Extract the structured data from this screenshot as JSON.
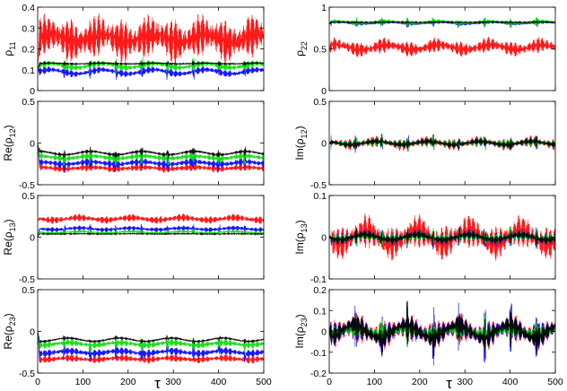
{
  "chart_data": {
    "type": "line",
    "x_tick_labels": [
      "0",
      "100",
      "200",
      "300",
      "400",
      "500"
    ],
    "xlim": [
      0,
      500
    ],
    "xlabel": "τ",
    "colors": {
      "series_red": "#ff0000",
      "series_green": "#00dd00",
      "series_blue": "#0000ff",
      "series_black": "#000000"
    },
    "panels": [
      {
        "id": "rho11",
        "label_main": "ρ",
        "label_sub": "11",
        "label_prefix": "",
        "label_suffix": "",
        "ylim": [
          0,
          0.4
        ],
        "y_ticks": [
          0,
          0.1,
          0.2,
          0.3,
          0.4
        ],
        "y_tick_labels": [
          "0",
          "0.1",
          "0.2",
          "0.3",
          "0.4"
        ],
        "series": [
          {
            "name": "red",
            "mean": 0.25,
            "amp": 0.09,
            "env": 0.02,
            "start": 0.1
          },
          {
            "name": "green",
            "mean": 0.12,
            "amp": 0.015,
            "env": 0.01,
            "start": 0.1
          },
          {
            "name": "blue",
            "mean": 0.09,
            "amp": 0.015,
            "env": 0.01,
            "start": 0.1
          },
          {
            "name": "black",
            "mean": 0.13,
            "amp": 0.005,
            "env": 0.002,
            "start": 0.1
          }
        ]
      },
      {
        "id": "rho22",
        "label_main": "ρ",
        "label_sub": "22",
        "label_prefix": "",
        "label_suffix": "",
        "ylim": [
          0,
          1
        ],
        "y_ticks": [
          0,
          0.5,
          1
        ],
        "y_tick_labels": [
          "0",
          "0.5",
          "1"
        ],
        "series": [
          {
            "name": "red",
            "mean": 0.52,
            "amp": 0.08,
            "env": 0.03,
            "start": 0.5
          },
          {
            "name": "green",
            "mean": 0.82,
            "amp": 0.025,
            "env": 0.01,
            "start": 0.8
          },
          {
            "name": "blue",
            "mean": 0.81,
            "amp": 0.02,
            "env": 0.01,
            "start": 0.8
          },
          {
            "name": "black",
            "mean": 0.82,
            "amp": 0.005,
            "env": 0.002,
            "start": 0.8
          }
        ]
      },
      {
        "id": "re_rho12",
        "label_main": "ρ",
        "label_sub": "12",
        "label_prefix": "Re(",
        "label_suffix": ")",
        "ylim": [
          -0.5,
          0.5
        ],
        "y_ticks": [
          -0.5,
          0,
          0.5
        ],
        "y_tick_labels": [
          "-0.5",
          "0",
          "0.5"
        ],
        "series": [
          {
            "name": "red",
            "mean": -0.3,
            "amp": 0.04,
            "env": 0.01,
            "start": 0
          },
          {
            "name": "green",
            "mean": -0.17,
            "amp": 0.035,
            "env": 0.015,
            "start": 0
          },
          {
            "name": "blue",
            "mean": -0.24,
            "amp": 0.04,
            "env": 0.015,
            "start": 0
          },
          {
            "name": "black",
            "mean": -0.12,
            "amp": 0.02,
            "env": 0.02,
            "start": 0
          }
        ]
      },
      {
        "id": "im_rho12",
        "label_main": "ρ",
        "label_sub": "12",
        "label_prefix": "Im(",
        "label_suffix": ")",
        "ylim": [
          -0.5,
          0.5
        ],
        "y_ticks": [
          -0.5,
          0,
          0.5
        ],
        "y_tick_labels": [
          "-0.5",
          "0",
          "0.5"
        ],
        "series": [
          {
            "name": "red",
            "mean": 0,
            "amp": 0.06,
            "env": 0.02,
            "start": 0
          },
          {
            "name": "green",
            "mean": 0,
            "amp": 0.04,
            "env": 0.015,
            "start": 0
          },
          {
            "name": "blue",
            "mean": 0,
            "amp": 0.04,
            "env": 0.015,
            "start": 0
          },
          {
            "name": "black",
            "mean": 0,
            "amp": 0.03,
            "env": 0.02,
            "start": 0
          }
        ]
      },
      {
        "id": "re_rho13",
        "label_main": "ρ",
        "label_sub": "13",
        "label_prefix": "Re(",
        "label_suffix": ")",
        "ylim": [
          -0.5,
          0.5
        ],
        "y_ticks": [
          -0.5,
          0,
          0.5
        ],
        "y_tick_labels": [
          "-0.5",
          "0",
          "0.5"
        ],
        "series": [
          {
            "name": "red",
            "mean": 0.22,
            "amp": 0.04,
            "env": 0.015,
            "start": 0.2
          },
          {
            "name": "green",
            "mean": 0.06,
            "amp": 0.015,
            "env": 0.01,
            "start": 0
          },
          {
            "name": "blue",
            "mean": 0.1,
            "amp": 0.025,
            "env": 0.01,
            "start": 0
          },
          {
            "name": "black",
            "mean": 0.04,
            "amp": 0.005,
            "env": 0.002,
            "start": 0
          }
        ]
      },
      {
        "id": "im_rho13",
        "label_main": "ρ",
        "label_sub": "13",
        "label_prefix": "Im(",
        "label_suffix": ")",
        "ylim": [
          -0.1,
          0.1
        ],
        "y_ticks": [
          -0.1,
          0,
          0.1
        ],
        "y_tick_labels": [
          "-0.1",
          "0",
          "0.1"
        ],
        "series": [
          {
            "name": "red",
            "mean": 0,
            "amp": 0.035,
            "env": 0.015,
            "start": 0
          },
          {
            "name": "green",
            "mean": 0,
            "amp": 0.01,
            "env": 0.004,
            "start": 0
          },
          {
            "name": "blue",
            "mean": 0,
            "amp": 0.012,
            "env": 0.005,
            "start": 0
          },
          {
            "name": "black",
            "mean": 0,
            "amp": 0.008,
            "env": 0.006,
            "start": 0
          }
        ]
      },
      {
        "id": "re_rho23",
        "label_main": "ρ",
        "label_sub": "23",
        "label_prefix": "Re(",
        "label_suffix": ")",
        "ylim": [
          -0.5,
          0.5
        ],
        "y_ticks": [
          -0.5,
          0,
          0.5
        ],
        "y_tick_labels": [
          "-0.5",
          "0",
          "0.5"
        ],
        "series": [
          {
            "name": "red",
            "mean": -0.33,
            "amp": 0.04,
            "env": 0.01,
            "start": 0
          },
          {
            "name": "green",
            "mean": -0.15,
            "amp": 0.035,
            "env": 0.015,
            "start": 0
          },
          {
            "name": "blue",
            "mean": -0.25,
            "amp": 0.04,
            "env": 0.015,
            "start": 0
          },
          {
            "name": "black",
            "mean": -0.1,
            "amp": 0.015,
            "env": 0.02,
            "start": 0
          }
        ]
      },
      {
        "id": "im_rho23",
        "label_main": "ρ",
        "label_sub": "23",
        "label_prefix": "Im(",
        "label_suffix": ")",
        "ylim": [
          -0.2,
          0.2
        ],
        "y_ticks": [
          -0.2,
          -0.1,
          0,
          0.1,
          0.2
        ],
        "y_tick_labels": [
          "-0.2",
          "-0.1",
          "0",
          "0.1",
          "0.2"
        ],
        "series": [
          {
            "name": "red",
            "mean": 0,
            "amp": 0.06,
            "env": 0.02,
            "start": 0
          },
          {
            "name": "green",
            "mean": 0,
            "amp": 0.03,
            "env": 0.01,
            "start": 0
          },
          {
            "name": "blue",
            "mean": 0,
            "amp": 0.05,
            "env": 0.02,
            "start": 0
          },
          {
            "name": "black",
            "mean": 0,
            "amp": 0.04,
            "env": 0.03,
            "start": 0
          }
        ]
      }
    ]
  }
}
